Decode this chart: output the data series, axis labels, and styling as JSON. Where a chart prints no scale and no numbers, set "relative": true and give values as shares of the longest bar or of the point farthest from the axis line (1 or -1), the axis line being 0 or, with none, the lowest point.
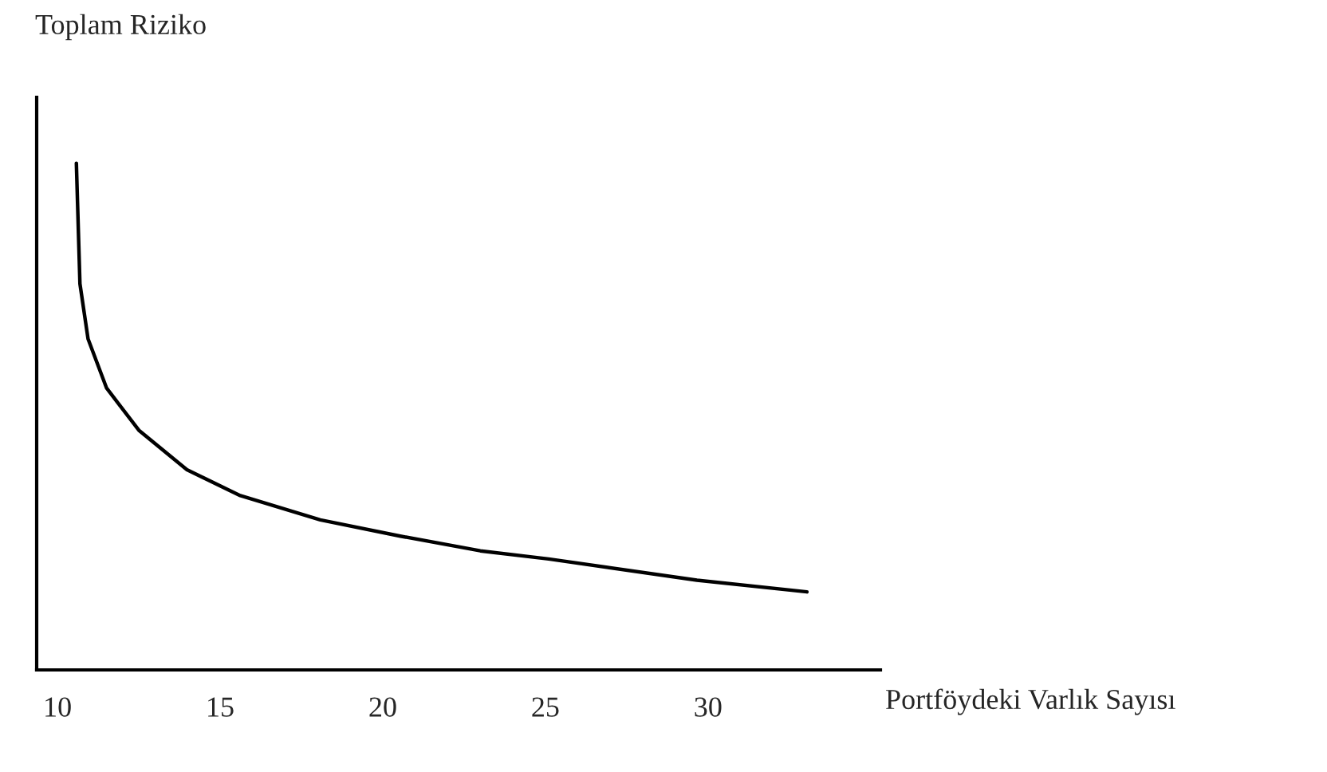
{
  "chart_data": {
    "type": "line",
    "relative": true,
    "xlabel": "Portföydeki Varlık Sayısı",
    "ylabel": "Toplam Riziko",
    "xlim": [
      9.36,
      35.3
    ],
    "xticks": [
      10,
      15,
      20,
      25,
      30
    ],
    "grid": false,
    "legend": false,
    "marker": "none",
    "line_style": "solid",
    "series": [
      {
        "color": "#000000",
        "x": [
          10.58,
          10.69,
          10.94,
          11.51,
          12.5,
          13.98,
          15.62,
          18.08,
          20.54,
          23.0,
          25.1,
          29.66,
          33.04
        ],
        "values": [
          1,
          0.762,
          0.653,
          0.556,
          0.473,
          0.395,
          0.344,
          0.296,
          0.264,
          0.235,
          0.219,
          0.177,
          0.154
        ]
      }
    ]
  }
}
